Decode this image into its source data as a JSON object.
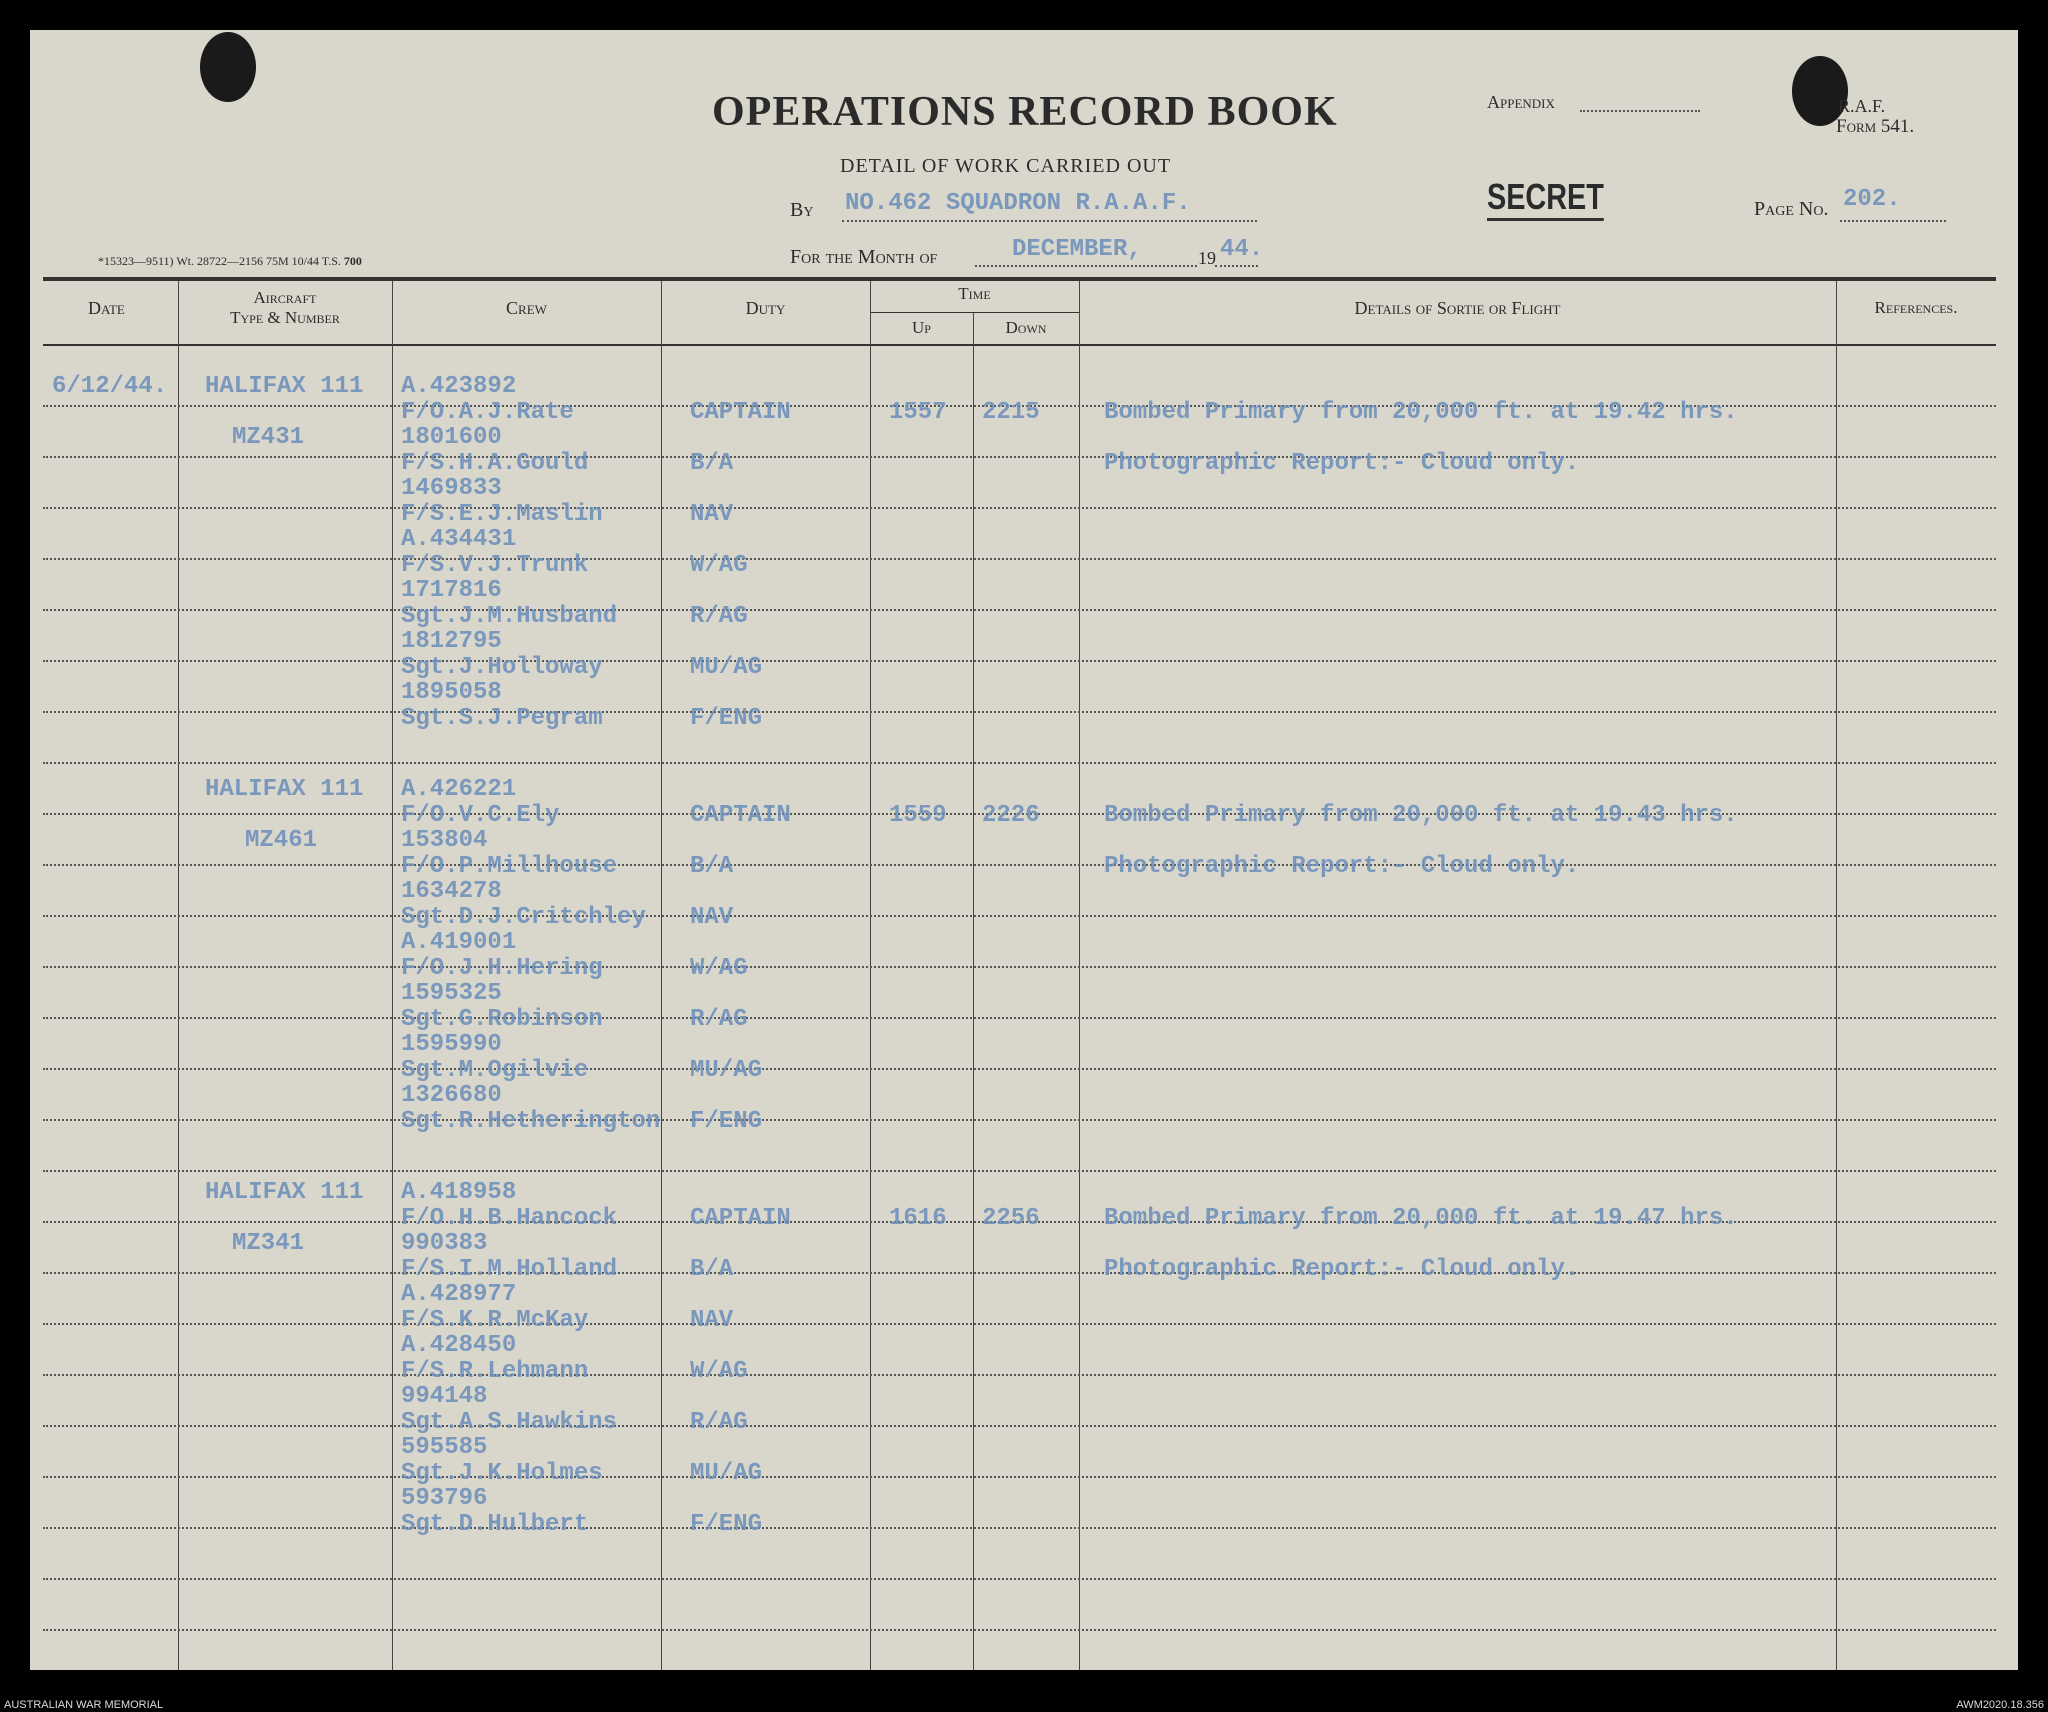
{
  "header": {
    "title": "OPERATIONS RECORD BOOK",
    "subtitle": "DETAIL OF WORK CARRIED OUT",
    "appendix_label": "Appendix",
    "form_line1": "R.A.F.",
    "form_line2": "Form 541.",
    "by_label": "By",
    "by_value": "NO.462 SQUADRON R.A.A.F.",
    "secret": "SECRET",
    "page_label": "Page No.",
    "page_value": "202.",
    "month_label": "For the Month of",
    "month_value": "DECEMBER,",
    "year_prefix": "19",
    "year_value": "44.",
    "print_code": "*15323—9511) Wt. 28722—2156 75M 10/44 T.S.",
    "print_code_bold": "700"
  },
  "columns": {
    "date": "Date",
    "aircraft_1": "Aircraft",
    "aircraft_2": "Type & Number",
    "crew": "Crew",
    "duty": "Duty",
    "time": "Time",
    "up": "Up",
    "down": "Down",
    "details": "Details of Sortie or Flight",
    "references": "References."
  },
  "date": "6/12/44.",
  "sorties": [
    {
      "aircraft_type": "HALIFAX 111",
      "serial": "MZ431",
      "up": "1557",
      "down": "2215",
      "details": [
        "Bombed Primary from 20,000 ft. at 19.42 hrs.",
        "Photographic Report:-    Cloud only."
      ],
      "crew": [
        {
          "number": "A.423892",
          "name": "F/O.A.J.Rate",
          "duty": "CAPTAIN"
        },
        {
          "number": "1801600",
          "name": "F/S.H.A.Gould",
          "duty": "B/A"
        },
        {
          "number": "1469833",
          "name": "F/S.E.J.Maslin",
          "duty": "NAV"
        },
        {
          "number": "A.434431",
          "name": "F/S.V.J.Trunk",
          "duty": "W/AG"
        },
        {
          "number": "1717816",
          "name": "Sgt.J.M.Husband",
          "duty": "R/AG"
        },
        {
          "number": "1812795",
          "name": "Sgt.J.Holloway",
          "duty": "MU/AG"
        },
        {
          "number": "1895058",
          "name": "Sgt.S.J.Pegram",
          "duty": "F/ENG"
        }
      ]
    },
    {
      "aircraft_type": "HALIFAX 111",
      "serial": "MZ461",
      "up": "1559",
      "down": "2226",
      "details": [
        "Bombed Primary from 20,000 ft. at 19.43 hrs.",
        "Photographic Report:-    Cloud only."
      ],
      "crew": [
        {
          "number": "A.426221",
          "name": "F/O.V.C.Ely",
          "duty": "CAPTAIN"
        },
        {
          "number": "153804",
          "name": "F/O.P.Millhouse",
          "duty": "B/A"
        },
        {
          "number": "1634278",
          "name": "Sgt.D.J.Critchley",
          "duty": "NAV"
        },
        {
          "number": "A.419001",
          "name": "F/O.J.H.Hering",
          "duty": "W/AG"
        },
        {
          "number": "1595325",
          "name": "Sgt.G.Robinson",
          "duty": "R/AG"
        },
        {
          "number": "1595990",
          "name": "Sgt.M.Ogilvie",
          "duty": "MU/AG"
        },
        {
          "number": "1326680",
          "name": "Sgt.R.Hetherington",
          "duty": "F/ENG"
        }
      ]
    },
    {
      "aircraft_type": "HALIFAX 111",
      "serial": "MZ341",
      "up": "1616",
      "down": "2256",
      "details": [
        "Bombed Primary from 20,000 ft. at 19.47 hrs.",
        "Photographic Report:-   Cloud only."
      ],
      "crew": [
        {
          "number": "A.418958",
          "name": "F/O.H.B.Hancock",
          "duty": "CAPTAIN"
        },
        {
          "number": "990383",
          "name": "F/S.I.M.Holland",
          "duty": "B/A"
        },
        {
          "number": "A.428977",
          "name": "F/S.K.R.McKay",
          "duty": "NAV"
        },
        {
          "number": "A.428450",
          "name": "F/S.R.Lehmann",
          "duty": "W/AG"
        },
        {
          "number": "994148",
          "name": "Sgt.A.S.Hawkins",
          "duty": "R/AG"
        },
        {
          "number": "595585",
          "name": "Sgt.J.K.Holmes",
          "duty": "MU/AG"
        },
        {
          "number": "593796",
          "name": "Sgt.D.Hulbert",
          "duty": "F/ENG"
        }
      ]
    }
  ],
  "footer": {
    "left": "AUSTRALIAN WAR MEMORIAL",
    "right": "AWM2020.18.356"
  },
  "colors": {
    "paper": "#d9d7cc",
    "typewriter_ink": "#6a8cba",
    "print_ink": "#2b2b2b"
  }
}
